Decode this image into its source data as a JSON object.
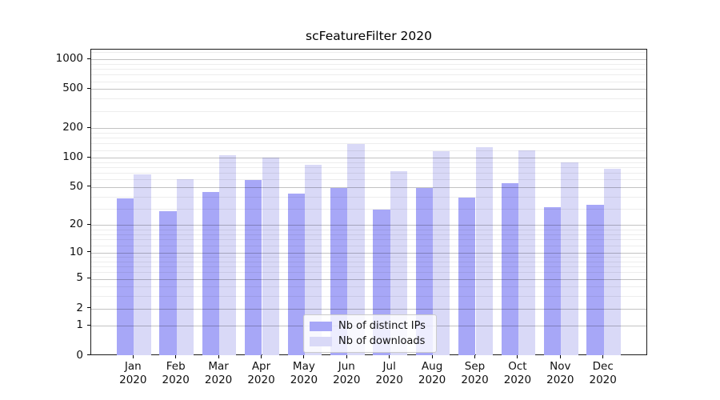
{
  "chart_data": {
    "type": "bar",
    "title": "scFeatureFilter 2020",
    "categories": [
      "Jan",
      "Feb",
      "Mar",
      "Apr",
      "May",
      "Jun",
      "Jul",
      "Aug",
      "Sep",
      "Oct",
      "Nov",
      "Dec"
    ],
    "x_tick_year": "2020",
    "series": [
      {
        "name": "Nb of distinct IPs",
        "color": "#a7a7f7",
        "values": [
          38,
          28,
          44,
          59,
          43,
          49,
          29,
          49,
          39,
          55,
          31,
          33
        ]
      },
      {
        "name": "Nb of downloads",
        "color": "#d9d9f7",
        "values": [
          67,
          60,
          106,
          100,
          85,
          139,
          73,
          116,
          127,
          119,
          90,
          77
        ]
      }
    ],
    "y_ticks": [
      0,
      1,
      2,
      5,
      10,
      20,
      50,
      100,
      200,
      500,
      1000
    ],
    "y_minor_gridlines": [
      3,
      4,
      6,
      7,
      8,
      9,
      12,
      14,
      16,
      18,
      30,
      40,
      60,
      70,
      80,
      90,
      120,
      140,
      160,
      180,
      300,
      400,
      600,
      700,
      800,
      900,
      1200
    ],
    "yscale": "log10(value+1)",
    "ylim": [
      0,
      1260
    ],
    "grid": true,
    "legend_position": "lower center"
  },
  "colors": {
    "bar_distinct_ips": "#a7a7f7",
    "bar_downloads": "#d9d9f7",
    "grid_major": "#c2c2c2",
    "grid_minor": "#ececec",
    "spine": "#1a1a1a",
    "text": "#111111",
    "legend_border": "#cbcbcb"
  }
}
